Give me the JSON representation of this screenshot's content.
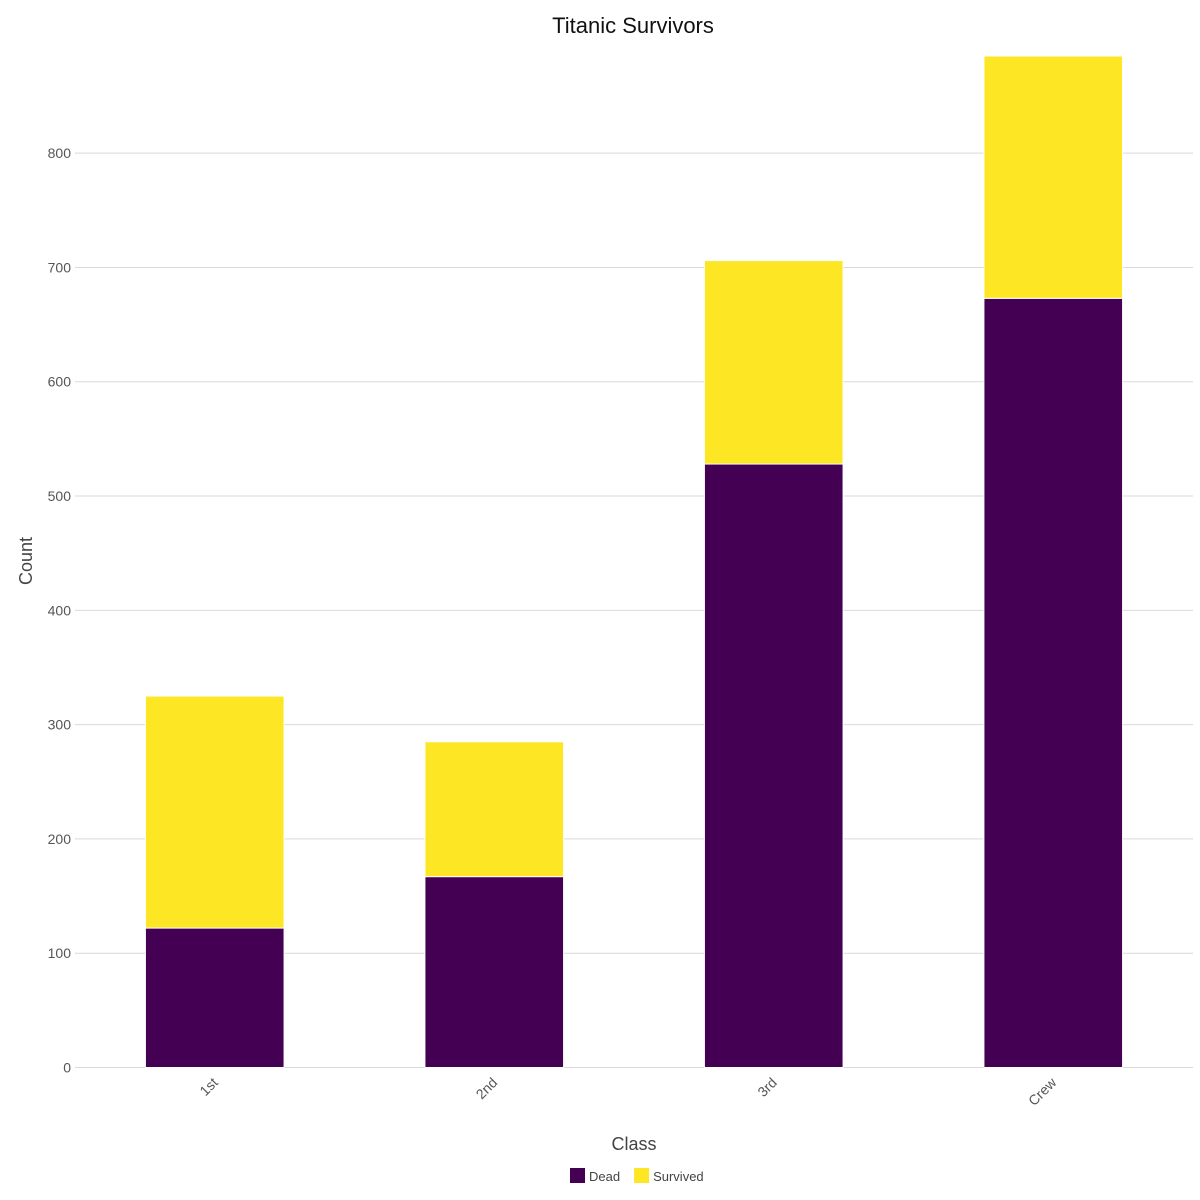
{
  "chart_data": {
    "type": "bar",
    "stacked": true,
    "title": "Titanic Survivors",
    "xlabel": "Class",
    "ylabel": "Count",
    "categories": [
      "1st",
      "2nd",
      "3rd",
      "Crew"
    ],
    "series": [
      {
        "name": "Dead",
        "color": "#440154",
        "values": [
          122,
          167,
          528,
          673
        ]
      },
      {
        "name": "Survived",
        "color": "#FDE725",
        "values": [
          203,
          118,
          178,
          212
        ]
      }
    ],
    "yticks": [
      0,
      100,
      200,
      300,
      400,
      500,
      600,
      700,
      800
    ],
    "ylim": [
      0,
      885
    ],
    "grid": true,
    "legend_position": "bottom"
  }
}
